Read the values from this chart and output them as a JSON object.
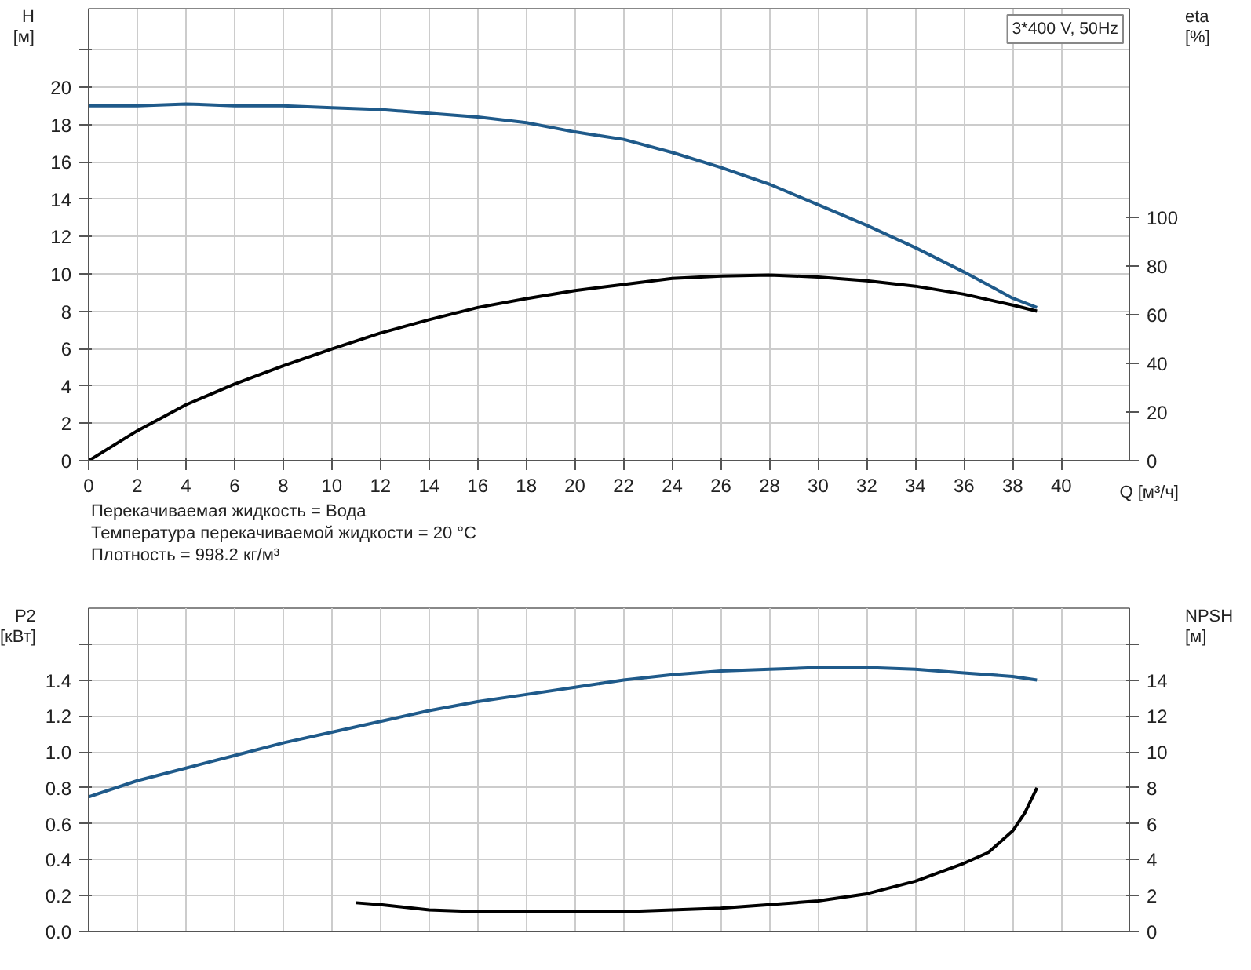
{
  "chart_data": [
    {
      "type": "line",
      "xlabel": "Q [м³/ч]",
      "ylabel": "H [м]",
      "y2label": "eta [%]",
      "annotations": [
        "3*400 V, 50Hz",
        "Перекачиваемая жидкость = Вода",
        "Температура перекачиваемой жидкости = 20 °C",
        "Плотность = 998.2 кг/м³"
      ],
      "xlim": [
        0,
        42.8
      ],
      "xticks": [
        0,
        2,
        4,
        6,
        8,
        10,
        12,
        14,
        16,
        18,
        20,
        22,
        24,
        26,
        28,
        30,
        32,
        34,
        36,
        38,
        40
      ],
      "ylim": [
        0,
        24.2
      ],
      "yticks": [
        0,
        2,
        4,
        6,
        8,
        10,
        12,
        14,
        16,
        18,
        20,
        {
          "value": 22,
          "label": null
        }
      ],
      "y2lim": [
        0,
        186
      ],
      "y2ticks": [
        0,
        20,
        40,
        60,
        80,
        100
      ],
      "grid": true,
      "series": [
        {
          "color": "#1f5a8a",
          "x": [
            0,
            2,
            4,
            6,
            8,
            10,
            12,
            14,
            16,
            18,
            20,
            22,
            24,
            26,
            28,
            30,
            32,
            34,
            36,
            38,
            39
          ],
          "values": [
            19.0,
            19.0,
            19.1,
            19.0,
            19.0,
            18.9,
            18.8,
            18.6,
            18.4,
            18.1,
            17.6,
            17.2,
            16.5,
            15.7,
            14.8,
            13.7,
            12.6,
            11.4,
            10.1,
            8.7,
            8.2
          ]
        },
        {
          "color": "#000000",
          "axis": "y2",
          "x": [
            0,
            2,
            4,
            6,
            8,
            10,
            12,
            14,
            16,
            18,
            20,
            22,
            24,
            26,
            28,
            30,
            32,
            34,
            36,
            38,
            39
          ],
          "values": [
            0,
            12.3,
            23,
            31.5,
            39,
            46,
            52.5,
            58,
            63,
            66.7,
            70,
            72.5,
            75,
            76,
            76.4,
            75.6,
            74,
            71.8,
            68.5,
            64,
            61.5
          ]
        }
      ]
    },
    {
      "type": "line",
      "ylabel": "P2 [кВт]",
      "y2label": "NPSH [м]",
      "xlim": [
        0,
        42.8
      ],
      "xticks": [
        0,
        2,
        4,
        6,
        8,
        10,
        12,
        14,
        16,
        18,
        20,
        22,
        24,
        26,
        28,
        30,
        32,
        34,
        36,
        38,
        40
      ],
      "tick_labels": "y",
      "ylim": [
        0,
        1.8
      ],
      "yticks": [
        {
          "value": 0,
          "label": "0.0"
        },
        0.2,
        0.4,
        0.6,
        0.8,
        {
          "value": 1,
          "label": "1.0"
        },
        1.2,
        1.4,
        {
          "value": 1.6,
          "label": null
        }
      ],
      "y2lim": [
        0,
        18
      ],
      "y2ticks": [
        0,
        2,
        4,
        6,
        8,
        10,
        12,
        14,
        {
          "value": 16,
          "label": null
        }
      ],
      "grid": true,
      "series": [
        {
          "color": "#1f5a8a",
          "x": [
            0,
            2,
            4,
            6,
            8,
            10,
            12,
            14,
            16,
            18,
            20,
            22,
            24,
            26,
            28,
            30,
            32,
            34,
            36,
            38,
            39
          ],
          "values": [
            0.75,
            0.84,
            0.91,
            0.98,
            1.05,
            1.11,
            1.17,
            1.23,
            1.28,
            1.32,
            1.36,
            1.4,
            1.43,
            1.45,
            1.46,
            1.47,
            1.47,
            1.46,
            1.44,
            1.42,
            1.4
          ]
        },
        {
          "color": "#000000",
          "axis": "y2",
          "x": [
            11,
            12,
            14,
            16,
            18,
            20,
            22,
            24,
            26,
            28,
            30,
            32,
            34,
            36,
            37,
            38,
            38.5,
            39
          ],
          "values": [
            1.6,
            1.5,
            1.2,
            1.1,
            1.1,
            1.1,
            1.1,
            1.2,
            1.3,
            1.5,
            1.7,
            2.1,
            2.8,
            3.8,
            4.4,
            5.6,
            6.6,
            8.0
          ]
        }
      ]
    }
  ]
}
